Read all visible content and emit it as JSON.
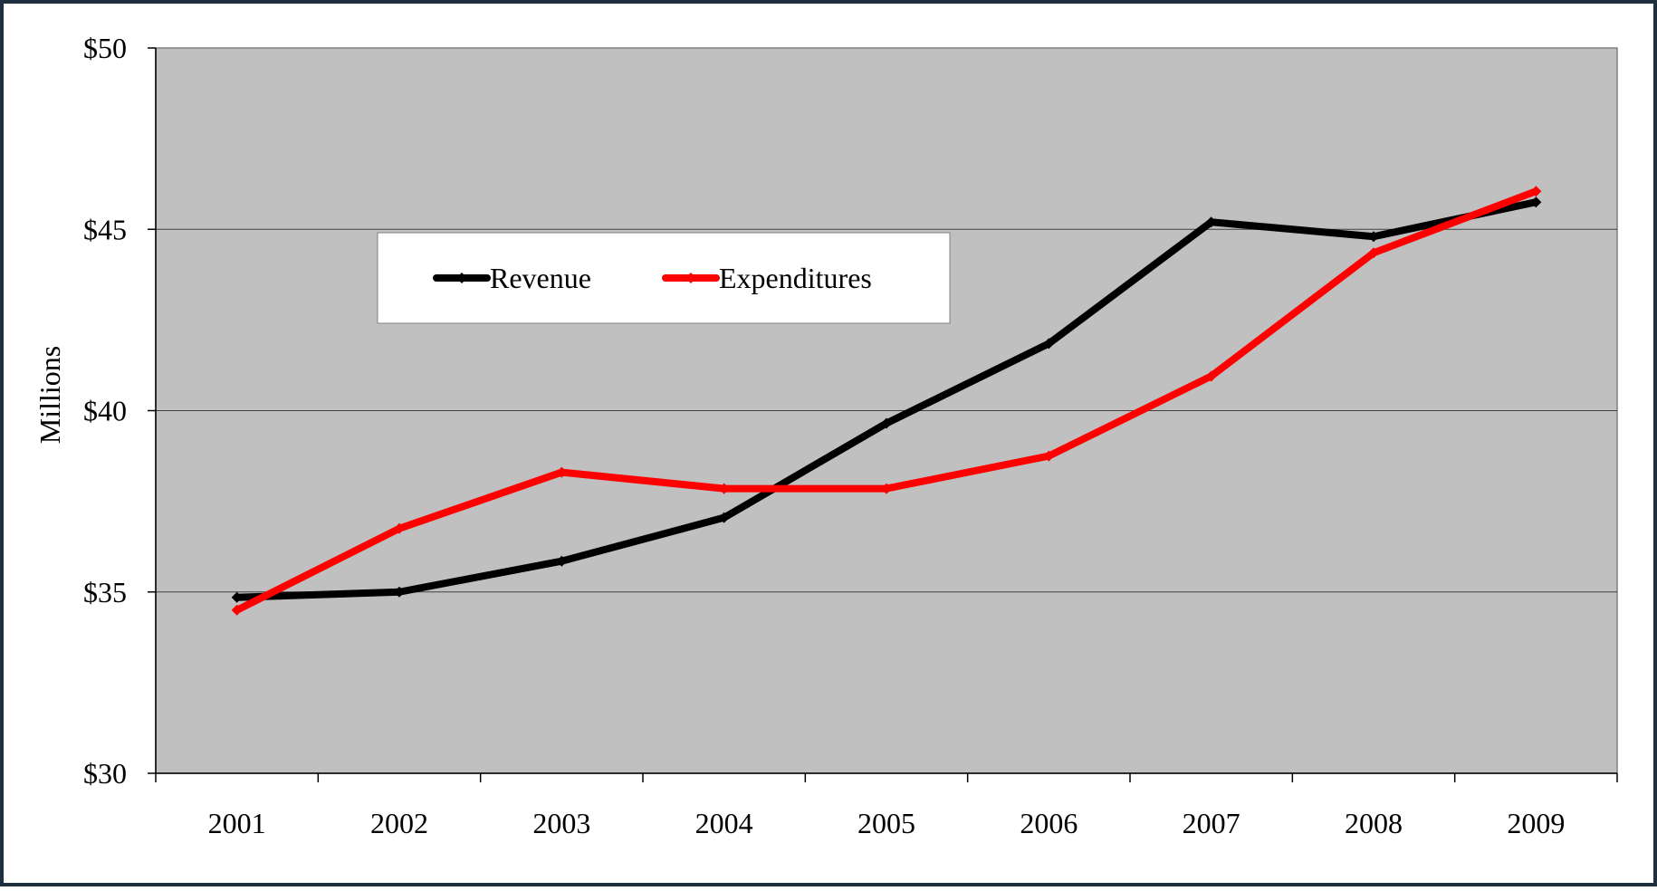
{
  "chart_data": {
    "type": "line",
    "title": "",
    "xlabel": "",
    "ylabel": "Millions",
    "categories": [
      "2001",
      "2002",
      "2003",
      "2004",
      "2005",
      "2006",
      "2007",
      "2008",
      "2009"
    ],
    "ylim": [
      30,
      50
    ],
    "yticks": [
      30,
      35,
      40,
      45,
      50
    ],
    "ytick_labels": [
      "$30",
      "$35",
      "$40",
      "$45",
      "$50"
    ],
    "grid": true,
    "legend_position": "top-left",
    "series": [
      {
        "name": "Revenue",
        "color": "#000000",
        "values": [
          34.85,
          35.0,
          35.85,
          37.05,
          39.65,
          41.85,
          45.2,
          44.8,
          45.75
        ]
      },
      {
        "name": "Expenditures",
        "color": "#ff0000",
        "values": [
          34.5,
          36.75,
          38.3,
          37.85,
          37.85,
          38.75,
          40.95,
          44.35,
          46.05
        ]
      }
    ],
    "colors": {
      "plot_background": "#c0c0c0",
      "frame_background": "#ffffff",
      "outer_border": "#1f2f3f"
    }
  }
}
